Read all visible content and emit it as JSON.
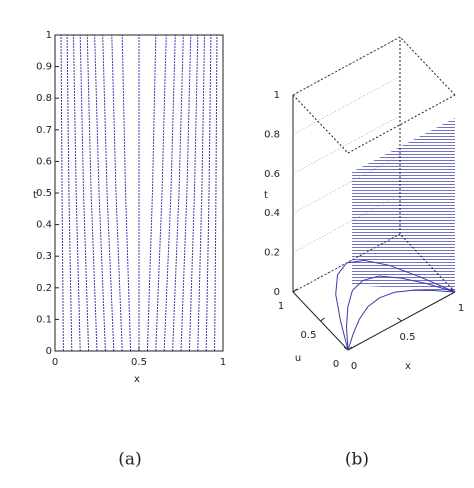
{
  "chart_data": [
    {
      "type": "line",
      "caption": "(a)",
      "x_label": "x",
      "y_label": "t",
      "xlim": [
        0,
        1
      ],
      "ylim": [
        0,
        1
      ],
      "xticks": [
        0,
        0.5,
        1
      ],
      "yticks": [
        0,
        0.1,
        0.2,
        0.3,
        0.4,
        0.5,
        0.6,
        0.7,
        0.8,
        0.9,
        1
      ],
      "y": [
        0,
        0.5,
        1
      ],
      "series": [
        {
          "color": "#3b3bab",
          "values": [
            0,
            0,
            0
          ]
        },
        {
          "color": "#3b3bab",
          "values": [
            0.05,
            0.042,
            0.036
          ]
        },
        {
          "color": "#3b3bab",
          "values": [
            0.1,
            0.083,
            0.072
          ]
        },
        {
          "color": "#3b3bab",
          "values": [
            0.15,
            0.126,
            0.11
          ]
        },
        {
          "color": "#3b3bab",
          "values": [
            0.2,
            0.17,
            0.15
          ]
        },
        {
          "color": "#3b3bab",
          "values": [
            0.25,
            0.215,
            0.192
          ]
        },
        {
          "color": "#3b3bab",
          "values": [
            0.3,
            0.262,
            0.236
          ]
        },
        {
          "color": "#3b3bab",
          "values": [
            0.35,
            0.31,
            0.284
          ]
        },
        {
          "color": "#3b3bab",
          "values": [
            0.4,
            0.363,
            0.338
          ]
        },
        {
          "color": "#3b3bab",
          "values": [
            0.45,
            0.42,
            0.4
          ]
        },
        {
          "color": "#3b3bab",
          "values": [
            0.5,
            0.5,
            0.5
          ]
        },
        {
          "color": "#3b3bab",
          "values": [
            0.55,
            0.58,
            0.6
          ]
        },
        {
          "color": "#3b3bab",
          "values": [
            0.6,
            0.637,
            0.662
          ]
        },
        {
          "color": "#3b3bab",
          "values": [
            0.65,
            0.69,
            0.716
          ]
        },
        {
          "color": "#3b3bab",
          "values": [
            0.7,
            0.738,
            0.764
          ]
        },
        {
          "color": "#3b3bab",
          "values": [
            0.75,
            0.785,
            0.808
          ]
        },
        {
          "color": "#3b3bab",
          "values": [
            0.8,
            0.83,
            0.85
          ]
        },
        {
          "color": "#3b3bab",
          "values": [
            0.85,
            0.874,
            0.89
          ]
        },
        {
          "color": "#3b3bab",
          "values": [
            0.9,
            0.917,
            0.928
          ]
        },
        {
          "color": "#3b3bab",
          "values": [
            0.95,
            0.958,
            0.964
          ]
        },
        {
          "color": "#3b3bab",
          "values": [
            1,
            1,
            1
          ]
        }
      ]
    },
    {
      "type": "line3d",
      "caption": "(b)",
      "x_label": "x",
      "u_label": "u",
      "t_label": "t",
      "xlim": [
        0,
        1
      ],
      "ulim": [
        0,
        1
      ],
      "tlim": [
        0,
        1
      ],
      "xticks": [
        0,
        0.5,
        1
      ],
      "uticks": [
        0,
        0.5,
        1
      ],
      "tticks": [
        0,
        0.2,
        0.4,
        0.6,
        0.8,
        1
      ],
      "x": [
        0,
        0.125,
        0.25,
        0.375,
        0.5,
        0.625,
        0.75,
        0.875,
        1
      ],
      "series": [
        {
          "color": "#3b3bab",
          "values": [
            0,
            0.15,
            0.28,
            0.37,
            0.4,
            0.37,
            0.28,
            0.15,
            0
          ]
        },
        {
          "color": "#3b3bab",
          "values": [
            0,
            0.27,
            0.49,
            0.65,
            0.7,
            0.65,
            0.49,
            0.27,
            0
          ]
        },
        {
          "color": "#3b3bab",
          "values": [
            0,
            0.38,
            0.71,
            0.92,
            1,
            0.92,
            0.71,
            0.38,
            0
          ]
        }
      ]
    }
  ]
}
